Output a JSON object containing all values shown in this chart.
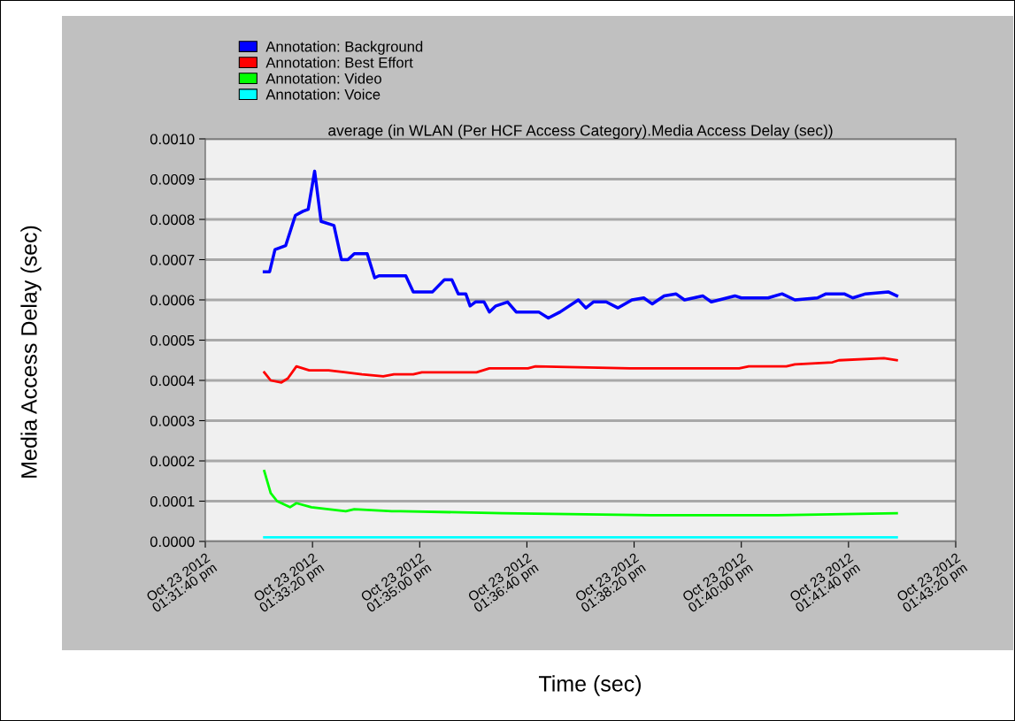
{
  "chart_data": {
    "type": "line",
    "title": "average (in WLAN (Per HCF Access Category).Media Access Delay (sec))",
    "xlabel": "Time (sec)",
    "ylabel": "Media Access Delay (sec)",
    "xlim": [
      "2012-10-23T13:31:40",
      "2012-10-23T13:43:20"
    ],
    "xticks": [
      {
        "value": "2012-10-23T13:31:40",
        "label": "Oct 23 2012\n01:31:40 pm"
      },
      {
        "value": "2012-10-23T13:33:20",
        "label": "Oct 23 2012\n01:33:20 pm"
      },
      {
        "value": "2012-10-23T13:35:00",
        "label": "Oct 23 2012\n01:35:00 pm"
      },
      {
        "value": "2012-10-23T13:36:40",
        "label": "Oct 23 2012\n01:36:40 pm"
      },
      {
        "value": "2012-10-23T13:38:20",
        "label": "Oct 23 2012\n01:38:20 pm"
      },
      {
        "value": "2012-10-23T13:40:00",
        "label": "Oct 23 2012\n01:40:00 pm"
      },
      {
        "value": "2012-10-23T13:41:40",
        "label": "Oct 23 2012\n01:41:40 pm"
      },
      {
        "value": "2012-10-23T13:43:20",
        "label": "Oct 23 2012\n01:43:20 pm"
      }
    ],
    "ylim": [
      0,
      0.001
    ],
    "yticks": [
      {
        "value": 0,
        "label": "0.0000"
      },
      {
        "value": 0.0001,
        "label": "0.0001"
      },
      {
        "value": 0.0002,
        "label": "0.0002"
      },
      {
        "value": 0.0003,
        "label": "0.0003"
      },
      {
        "value": 0.0004,
        "label": "0.0004"
      },
      {
        "value": 0.0005,
        "label": "0.0005"
      },
      {
        "value": 0.0006,
        "label": "0.0006"
      },
      {
        "value": 0.0007,
        "label": "0.0007"
      },
      {
        "value": 0.0008,
        "label": "0.0008"
      },
      {
        "value": 0.0009,
        "label": "0.0009"
      },
      {
        "value": 0.001,
        "label": "0.0010"
      }
    ],
    "grid": "y",
    "legend": "top",
    "marker": "none",
    "line_style": "solid",
    "series": [
      {
        "name": "Annotation: Background",
        "color": "#0000ff",
        "x": [
          "2012-10-23T13:32:35",
          "2012-10-23T13:32:40",
          "2012-10-23T13:32:45",
          "2012-10-23T13:32:55",
          "2012-10-23T13:33:04",
          "2012-10-23T13:33:11",
          "2012-10-23T13:33:16",
          "2012-10-23T13:33:22",
          "2012-10-23T13:33:28",
          "2012-10-23T13:33:40",
          "2012-10-23T13:33:47",
          "2012-10-23T13:33:53",
          "2012-10-23T13:33:59",
          "2012-10-23T13:34:11",
          "2012-10-23T13:34:18",
          "2012-10-23T13:34:22",
          "2012-10-23T13:34:34",
          "2012-10-23T13:34:47",
          "2012-10-23T13:34:54",
          "2012-10-23T13:35:12",
          "2012-10-23T13:35:23",
          "2012-10-23T13:35:30",
          "2012-10-23T13:35:36",
          "2012-10-23T13:35:43",
          "2012-10-23T13:35:47",
          "2012-10-23T13:35:52",
          "2012-10-23T13:36:00",
          "2012-10-23T13:36:05",
          "2012-10-23T13:36:11",
          "2012-10-23T13:36:22",
          "2012-10-23T13:36:30",
          "2012-10-23T13:36:51",
          "2012-10-23T13:37:00",
          "2012-10-23T13:37:11",
          "2012-10-23T13:37:28",
          "2012-10-23T13:37:35",
          "2012-10-23T13:37:42",
          "2012-10-23T13:37:54",
          "2012-10-23T13:38:05",
          "2012-10-23T13:38:18",
          "2012-10-23T13:38:29",
          "2012-10-23T13:38:37",
          "2012-10-23T13:38:48",
          "2012-10-23T13:38:59",
          "2012-10-23T13:39:07",
          "2012-10-23T13:39:24",
          "2012-10-23T13:39:32",
          "2012-10-23T13:39:54",
          "2012-10-23T13:40:00",
          "2012-10-23T13:40:25",
          "2012-10-23T13:40:38",
          "2012-10-23T13:40:50",
          "2012-10-23T13:41:11",
          "2012-10-23T13:41:19",
          "2012-10-23T13:41:36",
          "2012-10-23T13:41:44",
          "2012-10-23T13:41:56",
          "2012-10-23T13:42:17",
          "2012-10-23T13:42:25"
        ],
        "values": [
          0.00067,
          0.00067,
          0.000725,
          0.000735,
          0.00081,
          0.00082,
          0.000825,
          0.00092,
          0.000795,
          0.000785,
          0.0007,
          0.0007,
          0.000715,
          0.000715,
          0.000655,
          0.00066,
          0.00066,
          0.00066,
          0.00062,
          0.00062,
          0.00065,
          0.00065,
          0.000615,
          0.000615,
          0.000585,
          0.000595,
          0.000595,
          0.00057,
          0.000585,
          0.000595,
          0.00057,
          0.00057,
          0.000555,
          0.00057,
          0.0006,
          0.00058,
          0.000595,
          0.000595,
          0.00058,
          0.0006,
          0.000605,
          0.00059,
          0.00061,
          0.000615,
          0.0006,
          0.00061,
          0.000595,
          0.00061,
          0.000605,
          0.000605,
          0.000615,
          0.0006,
          0.000605,
          0.000615,
          0.000615,
          0.000605,
          0.000615,
          0.00062,
          0.00061
        ]
      },
      {
        "name": "Annotation: Best Effort",
        "color": "#ff0000",
        "x": [
          "2012-10-23T13:32:35",
          "2012-10-23T13:32:41",
          "2012-10-23T13:32:51",
          "2012-10-23T13:32:57",
          "2012-10-23T13:33:05",
          "2012-10-23T13:33:17",
          "2012-10-23T13:33:35",
          "2012-10-23T13:33:51",
          "2012-10-23T13:34:06",
          "2012-10-23T13:34:26",
          "2012-10-23T13:34:36",
          "2012-10-23T13:34:54",
          "2012-10-23T13:35:02",
          "2012-10-23T13:35:37",
          "2012-10-23T13:35:53",
          "2012-10-23T13:36:05",
          "2012-10-23T13:36:41",
          "2012-10-23T13:36:48",
          "2012-10-23T13:38:16",
          "2012-10-23T13:38:19",
          "2012-10-23T13:39:58",
          "2012-10-23T13:40:07",
          "2012-10-23T13:40:42",
          "2012-10-23T13:40:50",
          "2012-10-23T13:41:25",
          "2012-10-23T13:41:31",
          "2012-10-23T13:42:13",
          "2012-10-23T13:42:25"
        ],
        "values": [
          0.00042,
          0.0004,
          0.000395,
          0.000405,
          0.000435,
          0.000425,
          0.000425,
          0.00042,
          0.000415,
          0.00041,
          0.000415,
          0.000415,
          0.00042,
          0.00042,
          0.00042,
          0.00043,
          0.00043,
          0.000435,
          0.00043,
          0.00043,
          0.00043,
          0.000435,
          0.000435,
          0.00044,
          0.000445,
          0.00045,
          0.000455,
          0.00045
        ]
      },
      {
        "name": "Annotation: Video",
        "color": "#00ff00",
        "x": [
          "2012-10-23T13:32:35",
          "2012-10-23T13:32:41",
          "2012-10-23T13:32:47",
          "2012-10-23T13:32:59",
          "2012-10-23T13:33:05",
          "2012-10-23T13:33:19",
          "2012-10-23T13:33:51",
          "2012-10-23T13:33:59",
          "2012-10-23T13:34:34",
          "2012-10-23T13:34:42",
          "2012-10-23T13:36:17",
          "2012-10-23T13:38:36",
          "2012-10-23T13:40:34",
          "2012-10-23T13:42:25"
        ],
        "values": [
          0.000175,
          0.00012,
          0.0001,
          8.5e-05,
          9.5e-05,
          8.5e-05,
          7.5e-05,
          8e-05,
          7.5e-05,
          7.5e-05,
          7e-05,
          6.5e-05,
          6.5e-05,
          7e-05
        ]
      },
      {
        "name": "Annotation: Voice",
        "color": "#00ffff",
        "x": [
          "2012-10-23T13:32:35",
          "2012-10-23T13:33:20",
          "2012-10-23T13:35:00",
          "2012-10-23T13:38:20",
          "2012-10-23T13:42:25"
        ],
        "values": [
          1e-05,
          1e-05,
          1e-05,
          1e-05,
          1e-05
        ]
      }
    ]
  }
}
